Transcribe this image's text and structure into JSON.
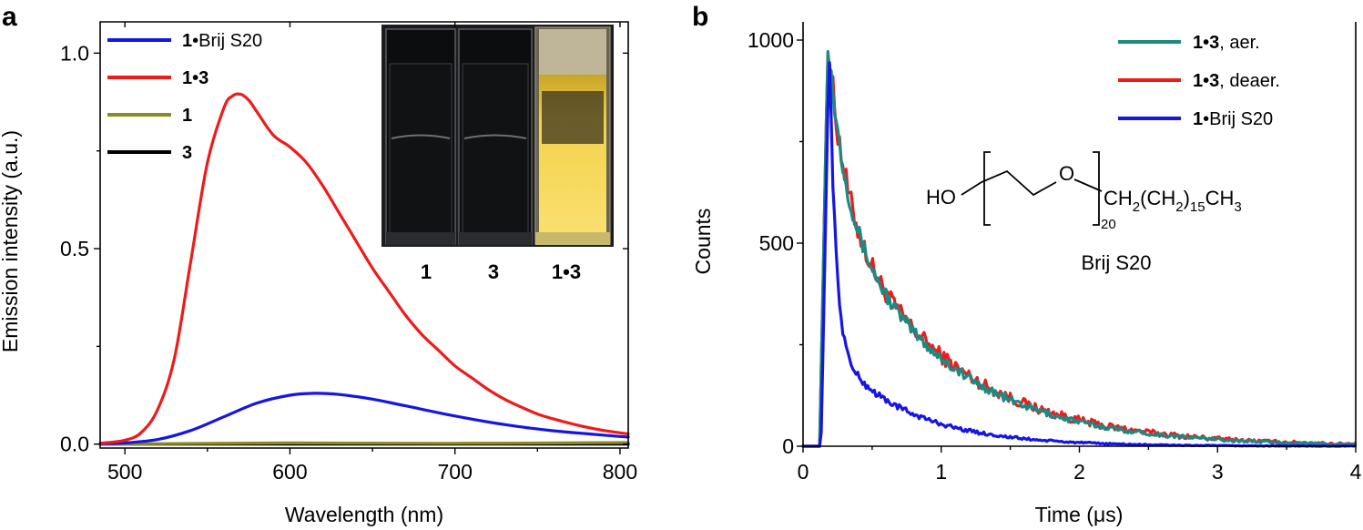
{
  "colors": {
    "blue": "#1515e6",
    "red": "#ee1b1b",
    "olive": "#8a8a1e",
    "black": "#000000",
    "teal": "#1c8a82"
  },
  "chart_data": [
    {
      "panel": "a",
      "type": "line",
      "xlabel": "Wavelength (nm)",
      "ylabel": "Emission intensity (a.u.)",
      "xlim": [
        485,
        805
      ],
      "ylim": [
        -0.01,
        1.08
      ],
      "xticks": [
        500,
        600,
        700,
        800
      ],
      "xtick_labels": [
        "500",
        "600",
        "700",
        "800"
      ],
      "yticks": [
        0.0,
        0.5,
        1.0
      ],
      "ytick_labels": [
        "0.0",
        "0.5",
        "1.0"
      ],
      "legend": [
        {
          "bold": "1",
          "rest": "•Brij S20",
          "color": "blue"
        },
        {
          "bold": "1•3",
          "rest": "",
          "color": "red"
        },
        {
          "bold": "1",
          "rest": "",
          "color": "olive"
        },
        {
          "bold": "3",
          "rest": "",
          "color": "black"
        }
      ],
      "series": [
        {
          "name": "1•3",
          "color": "red",
          "x": [
            485,
            500,
            510,
            520,
            530,
            540,
            550,
            560,
            565,
            570,
            575,
            580,
            590,
            600,
            610,
            620,
            630,
            640,
            650,
            660,
            670,
            680,
            690,
            700,
            710,
            720,
            730,
            740,
            750,
            760,
            770,
            780,
            790,
            805
          ],
          "y": [
            0.002,
            0.01,
            0.03,
            0.09,
            0.22,
            0.47,
            0.72,
            0.86,
            0.89,
            0.895,
            0.88,
            0.85,
            0.79,
            0.76,
            0.72,
            0.66,
            0.59,
            0.52,
            0.45,
            0.39,
            0.33,
            0.28,
            0.24,
            0.2,
            0.17,
            0.14,
            0.115,
            0.095,
            0.077,
            0.064,
            0.053,
            0.043,
            0.035,
            0.026
          ]
        },
        {
          "name": "1•Brij S20",
          "color": "blue",
          "x": [
            485,
            500,
            520,
            540,
            560,
            580,
            600,
            615,
            630,
            650,
            670,
            700,
            730,
            760,
            790,
            805
          ],
          "y": [
            0.001,
            0.003,
            0.012,
            0.035,
            0.07,
            0.105,
            0.125,
            0.13,
            0.127,
            0.115,
            0.098,
            0.072,
            0.05,
            0.034,
            0.023,
            0.018
          ]
        },
        {
          "name": "1",
          "color": "olive",
          "x": [
            485,
            600,
            700,
            805
          ],
          "y": [
            0.0,
            0.003,
            0.002,
            0.004
          ]
        },
        {
          "name": "3",
          "color": "black",
          "x": [
            485,
            805
          ],
          "y": [
            0.0,
            0.0
          ]
        }
      ],
      "inset_labels": [
        "1",
        "3",
        "1•3"
      ]
    },
    {
      "panel": "b",
      "type": "line",
      "xlabel": "Time (μs)",
      "ylabel": "Counts",
      "xlim": [
        0,
        4
      ],
      "ylim": [
        0,
        1000
      ],
      "xticks": [
        0,
        1,
        2,
        3,
        4
      ],
      "xtick_labels": [
        "0",
        "1",
        "2",
        "3",
        "4"
      ],
      "yticks": [
        0,
        500,
        1000
      ],
      "ytick_labels": [
        "0",
        "500",
        "1000"
      ],
      "legend": [
        {
          "bold": "1•3",
          "rest": ", aer.",
          "color": "teal"
        },
        {
          "bold": "1•3",
          "rest": ", deaer.",
          "color": "red"
        },
        {
          "bold": "1",
          "rest": "•Brij S20",
          "color": "blue"
        }
      ],
      "series": [
        {
          "name": "1•3, deaer.",
          "color": "red",
          "t0": 0.12,
          "tpeak": 0.18,
          "tau": 0.8,
          "noise": 14
        },
        {
          "name": "1•3, aer.",
          "color": "teal",
          "t0": 0.12,
          "tpeak": 0.18,
          "tau": 0.78,
          "noise": 10
        },
        {
          "name": "1•Brij S20",
          "color": "blue",
          "t0": 0.13,
          "tpeak": 0.19,
          "tau": 0.32,
          "noise": 8
        }
      ],
      "structure": {
        "ho": "HO",
        "o": "O",
        "ch2": "CH",
        "sub2a": "2",
        "paren1": "(CH",
        "sub2b": "2",
        "paren2": ")",
        "sub15": "15",
        "ch3": "CH",
        "sub3": "3",
        "n": "20",
        "name": "Brij S20"
      }
    }
  ],
  "panels": {
    "a_label": "a",
    "b_label": "b"
  }
}
